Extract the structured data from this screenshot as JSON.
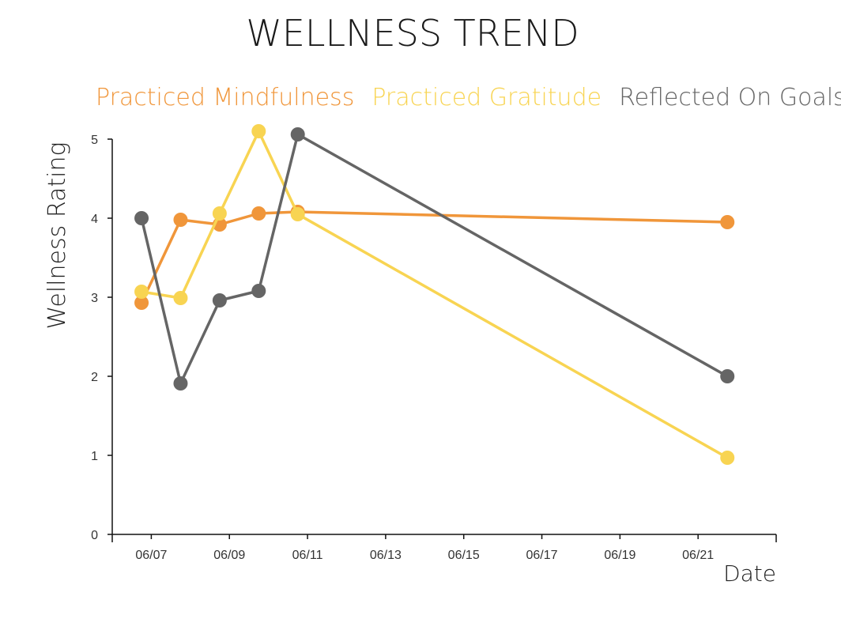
{
  "chart_data": {
    "type": "line",
    "title": "WELLNESS TREND",
    "xlabel": "Date",
    "ylabel": "Wellness Rating",
    "x_tick_labels": [
      "06/07",
      "06/09",
      "06/11",
      "06/13",
      "06/15",
      "06/17",
      "06/19",
      "06/21"
    ],
    "x_ticks": [
      "2023-06-07",
      "2023-06-09",
      "2023-06-11",
      "2023-06-13",
      "2023-06-15",
      "2023-06-17",
      "2023-06-19",
      "2023-06-21"
    ],
    "xlim": [
      "2023-06-06",
      "2023-06-23"
    ],
    "ylim": [
      0,
      5
    ],
    "y_ticks": [
      0,
      1,
      2,
      3,
      4,
      5
    ],
    "grid": false,
    "legend_position": "top",
    "series": [
      {
        "name": "Practiced Mindfulness",
        "color": "#F0963A",
        "points": [
          {
            "x": "2023-06-06T18:00",
            "y": 2.93
          },
          {
            "x": "2023-06-07T18:00",
            "y": 3.98
          },
          {
            "x": "2023-06-08T18:00",
            "y": 3.92
          },
          {
            "x": "2023-06-09T18:00",
            "y": 4.06
          },
          {
            "x": "2023-06-10T18:00",
            "y": 4.08
          },
          {
            "x": "2023-06-21T18:00",
            "y": 3.95
          }
        ]
      },
      {
        "name": "Practiced Gratitude",
        "color": "#F8D452",
        "points": [
          {
            "x": "2023-06-06T18:00",
            "y": 3.07
          },
          {
            "x": "2023-06-07T18:00",
            "y": 2.99
          },
          {
            "x": "2023-06-08T18:00",
            "y": 4.06
          },
          {
            "x": "2023-06-09T18:00",
            "y": 5.1
          },
          {
            "x": "2023-06-10T18:00",
            "y": 4.05
          },
          {
            "x": "2023-06-21T18:00",
            "y": 0.97
          }
        ]
      },
      {
        "name": "Reflected On Goals",
        "color": "#656565",
        "points": [
          {
            "x": "2023-06-06T18:00",
            "y": 4.0
          },
          {
            "x": "2023-06-07T18:00",
            "y": 1.91
          },
          {
            "x": "2023-06-08T18:00",
            "y": 2.96
          },
          {
            "x": "2023-06-09T18:00",
            "y": 3.08
          },
          {
            "x": "2023-06-10T18:00",
            "y": 5.06
          },
          {
            "x": "2023-06-21T18:00",
            "y": 2.0
          }
        ]
      }
    ]
  }
}
